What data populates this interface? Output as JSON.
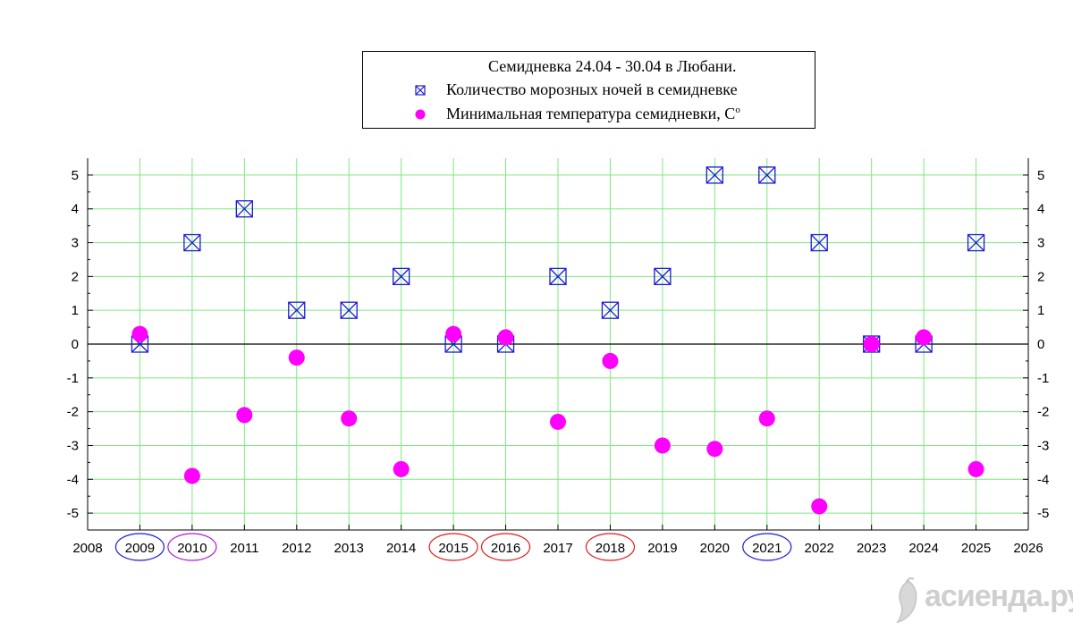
{
  "legend": {
    "title": "Семидневка 24.04 - 30.04 в Любани.",
    "series_frost_label": "Количество морозных ночей в семидневке",
    "series_temp_label": "Минимальная температура семидневки, С",
    "series_temp_unit_sup": "о"
  },
  "watermark": "асиенда.ру",
  "colors": {
    "frost": "#1a1ad6",
    "temp": "#ff00ff",
    "grid": "#7de87d",
    "ring_blue": "#1a1ad6",
    "ring_violet": "#b01ad6",
    "ring_red": "#e01a1a"
  },
  "chart_data": {
    "type": "scatter",
    "title": "Семидневка 24.04 - 30.04 в Любани.",
    "xlim": [
      2008,
      2026
    ],
    "ylim": [
      -5.5,
      5.5
    ],
    "x_ticks": [
      2008,
      2009,
      2010,
      2011,
      2012,
      2013,
      2014,
      2015,
      2016,
      2017,
      2018,
      2019,
      2020,
      2021,
      2022,
      2023,
      2024,
      2025,
      2026
    ],
    "y_ticks": [
      -5,
      -4,
      -3,
      -2,
      -1,
      0,
      1,
      2,
      3,
      4,
      5
    ],
    "grid": true,
    "legend_position": "top",
    "series": [
      {
        "name": "Количество морозных ночей в семидневке",
        "marker": "boxed-x",
        "x": [
          2009,
          2010,
          2011,
          2012,
          2013,
          2014,
          2015,
          2016,
          2017,
          2018,
          2019,
          2020,
          2021,
          2022,
          2023,
          2024,
          2025
        ],
        "y": [
          0,
          3,
          4,
          1,
          1,
          2,
          0,
          0,
          2,
          1,
          2,
          5,
          5,
          3,
          0,
          0,
          3
        ]
      },
      {
        "name": "Минимальная температура семидневки, С",
        "marker": "dot",
        "x": [
          2009,
          2010,
          2011,
          2012,
          2013,
          2014,
          2015,
          2016,
          2017,
          2018,
          2019,
          2020,
          2021,
          2022,
          2023,
          2024,
          2025
        ],
        "y": [
          0.3,
          -3.9,
          -2.1,
          -0.4,
          -2.2,
          -3.7,
          0.3,
          0.2,
          -2.3,
          -0.5,
          -3.0,
          -3.1,
          -2.2,
          -4.8,
          0.0,
          0.2,
          -3.7
        ]
      }
    ],
    "circled_years": [
      {
        "year": 2009,
        "color": "blue"
      },
      {
        "year": 2010,
        "color": "violet"
      },
      {
        "year": 2015,
        "color": "red"
      },
      {
        "year": 2016,
        "color": "red"
      },
      {
        "year": 2018,
        "color": "red"
      },
      {
        "year": 2021,
        "color": "blue"
      }
    ]
  }
}
